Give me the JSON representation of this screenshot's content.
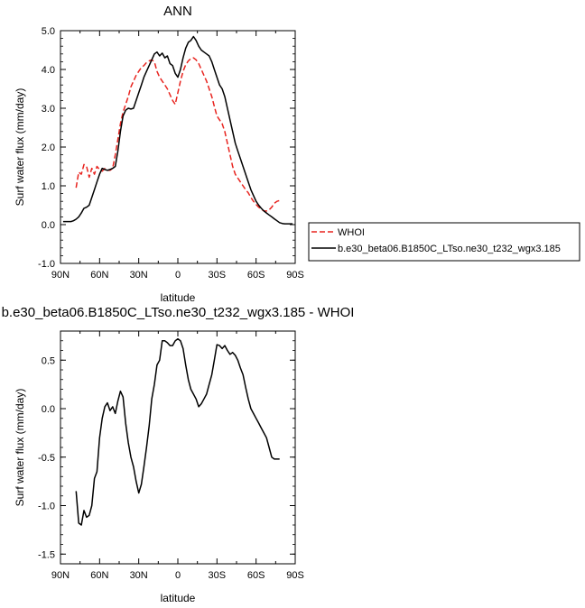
{
  "chart_data": [
    {
      "type": "line",
      "title": "ANN",
      "xlabel": "latitude",
      "ylabel": "Surf water flux (mm/day)",
      "xlim": [
        90,
        -90
      ],
      "ylim": [
        -1.0,
        5.0
      ],
      "xtick_values": [
        90,
        60,
        30,
        0,
        -30,
        -60,
        -90
      ],
      "xtick_labels": [
        "90N",
        "60N",
        "30N",
        "0",
        "30S",
        "60S",
        "90S"
      ],
      "ytick_values": [
        -1,
        0,
        1,
        2,
        3,
        4,
        5
      ],
      "ytick_labels": [
        "-1.0",
        "0.0",
        "1.0",
        "2.0",
        "3.0",
        "4.0",
        "5.0"
      ],
      "grid": false,
      "legend_position": "right",
      "series": [
        {
          "name": "WHOI",
          "color": "#e8241f",
          "dash": "dashed",
          "x": [
            78,
            76,
            74,
            72,
            70,
            68,
            66,
            64,
            62,
            60,
            58,
            56,
            54,
            52,
            50,
            48,
            46,
            44,
            42,
            40,
            38,
            36,
            34,
            32,
            30,
            28,
            26,
            24,
            22,
            20,
            18,
            16,
            14,
            12,
            10,
            8,
            6,
            4,
            2,
            0,
            -2,
            -4,
            -6,
            -8,
            -10,
            -12,
            -14,
            -16,
            -18,
            -20,
            -22,
            -24,
            -26,
            -28,
            -30,
            -32,
            -34,
            -36,
            -38,
            -40,
            -42,
            -44,
            -46,
            -48,
            -50,
            -52,
            -54,
            -56,
            -58,
            -60,
            -62,
            -64,
            -66,
            -68,
            -70,
            -72,
            -74,
            -76,
            -78
          ],
          "y": [
            0.95,
            1.35,
            1.3,
            1.55,
            1.5,
            1.22,
            1.45,
            1.3,
            1.5,
            1.42,
            1.38,
            1.45,
            1.4,
            1.4,
            1.45,
            1.8,
            2.2,
            2.6,
            2.9,
            3.1,
            3.3,
            3.55,
            3.7,
            3.85,
            3.95,
            4.05,
            4.1,
            4.18,
            4.22,
            4.25,
            4.2,
            3.95,
            3.8,
            3.7,
            3.6,
            3.5,
            3.35,
            3.2,
            3.1,
            3.4,
            3.7,
            3.95,
            4.12,
            4.22,
            4.28,
            4.3,
            4.25,
            4.15,
            4.0,
            3.85,
            3.7,
            3.5,
            3.3,
            3.05,
            2.8,
            2.7,
            2.6,
            2.4,
            2.1,
            1.8,
            1.5,
            1.3,
            1.2,
            1.1,
            1.0,
            0.9,
            0.82,
            0.7,
            0.6,
            0.52,
            0.45,
            0.4,
            0.35,
            0.35,
            0.38,
            0.45,
            0.55,
            0.6,
            0.62
          ]
        },
        {
          "name": "b.e30_beta06.B1850C_LTso.ne30_t232_wgx3.185",
          "color": "#000000",
          "dash": "solid",
          "x": [
            88,
            86,
            84,
            82,
            80,
            78,
            76,
            74,
            72,
            70,
            68,
            66,
            64,
            62,
            60,
            58,
            56,
            54,
            52,
            50,
            48,
            46,
            44,
            42,
            40,
            38,
            36,
            34,
            32,
            30,
            28,
            26,
            24,
            22,
            20,
            18,
            16,
            14,
            12,
            10,
            8,
            6,
            4,
            2,
            0,
            -2,
            -4,
            -6,
            -8,
            -10,
            -12,
            -14,
            -16,
            -18,
            -20,
            -22,
            -24,
            -26,
            -28,
            -30,
            -32,
            -34,
            -36,
            -38,
            -40,
            -42,
            -44,
            -46,
            -48,
            -50,
            -52,
            -54,
            -56,
            -58,
            -60,
            -62,
            -64,
            -66,
            -68,
            -70,
            -72,
            -74,
            -76,
            -78,
            -80,
            -82,
            -84,
            -86,
            -88
          ],
          "y": [
            0.08,
            0.08,
            0.08,
            0.08,
            0.1,
            0.14,
            0.2,
            0.3,
            0.42,
            0.45,
            0.5,
            0.7,
            0.9,
            1.1,
            1.3,
            1.45,
            1.42,
            1.4,
            1.42,
            1.45,
            1.5,
            1.9,
            2.4,
            2.8,
            2.95,
            3.0,
            2.98,
            3.0,
            3.2,
            3.4,
            3.6,
            3.8,
            3.95,
            4.1,
            4.25,
            4.4,
            4.45,
            4.35,
            4.42,
            4.3,
            4.35,
            4.15,
            4.1,
            3.9,
            3.8,
            4.0,
            4.3,
            4.55,
            4.7,
            4.75,
            4.85,
            4.75,
            4.6,
            4.5,
            4.45,
            4.4,
            4.35,
            4.2,
            4.0,
            3.8,
            3.6,
            3.5,
            3.3,
            3.0,
            2.7,
            2.4,
            2.1,
            1.9,
            1.7,
            1.5,
            1.3,
            1.1,
            0.9,
            0.75,
            0.6,
            0.5,
            0.42,
            0.35,
            0.3,
            0.25,
            0.2,
            0.15,
            0.1,
            0.05,
            0.03,
            0.02,
            0.02,
            0.02,
            0.02
          ]
        }
      ]
    },
    {
      "type": "line",
      "title": "b.e30_beta06.B1850C_LTso.ne30_t232_wgx3.185 - WHOI",
      "xlabel": "latitude",
      "ylabel": "Surf water flux (mm/day)",
      "xlim": [
        90,
        -90
      ],
      "ylim": [
        -1.6,
        0.8
      ],
      "xtick_values": [
        90,
        60,
        30,
        0,
        -30,
        -60,
        -90
      ],
      "xtick_labels": [
        "90N",
        "60N",
        "30N",
        "0",
        "30S",
        "60S",
        "90S"
      ],
      "ytick_values": [
        -1.5,
        -1.0,
        -0.5,
        0.0,
        0.5
      ],
      "ytick_labels": [
        "-1.5",
        "-1.0",
        "-0.5",
        "0.0",
        "0.5"
      ],
      "grid": false,
      "series": [
        {
          "color": "#000000",
          "dash": "solid",
          "x": [
            78,
            76,
            74,
            72,
            70,
            68,
            66,
            64,
            62,
            60,
            58,
            56,
            54,
            52,
            50,
            48,
            46,
            44,
            42,
            40,
            38,
            36,
            34,
            32,
            30,
            28,
            26,
            24,
            22,
            20,
            18,
            16,
            14,
            12,
            10,
            8,
            6,
            4,
            2,
            0,
            -2,
            -4,
            -6,
            -8,
            -10,
            -12,
            -14,
            -16,
            -18,
            -20,
            -22,
            -24,
            -26,
            -28,
            -30,
            -32,
            -34,
            -36,
            -38,
            -40,
            -42,
            -44,
            -46,
            -48,
            -50,
            -52,
            -54,
            -56,
            -58,
            -60,
            -62,
            -64,
            -66,
            -68,
            -70,
            -72,
            -74,
            -76,
            -78
          ],
          "y": [
            -0.85,
            -1.18,
            -1.2,
            -1.05,
            -1.12,
            -1.1,
            -1.0,
            -0.72,
            -0.65,
            -0.3,
            -0.1,
            0.02,
            0.06,
            -0.02,
            0.02,
            -0.05,
            0.08,
            0.18,
            0.12,
            -0.15,
            -0.35,
            -0.5,
            -0.6,
            -0.75,
            -0.87,
            -0.78,
            -0.6,
            -0.4,
            -0.18,
            0.1,
            0.25,
            0.45,
            0.5,
            0.7,
            0.7,
            0.68,
            0.65,
            0.65,
            0.7,
            0.72,
            0.7,
            0.62,
            0.45,
            0.3,
            0.2,
            0.15,
            0.1,
            0.02,
            0.05,
            0.1,
            0.15,
            0.25,
            0.35,
            0.5,
            0.66,
            0.65,
            0.62,
            0.65,
            0.6,
            0.56,
            0.58,
            0.55,
            0.5,
            0.42,
            0.35,
            0.22,
            0.1,
            0.0,
            -0.05,
            -0.1,
            -0.15,
            -0.2,
            -0.25,
            -0.3,
            -0.4,
            -0.5,
            -0.52,
            -0.52,
            -0.52
          ]
        }
      ]
    }
  ]
}
